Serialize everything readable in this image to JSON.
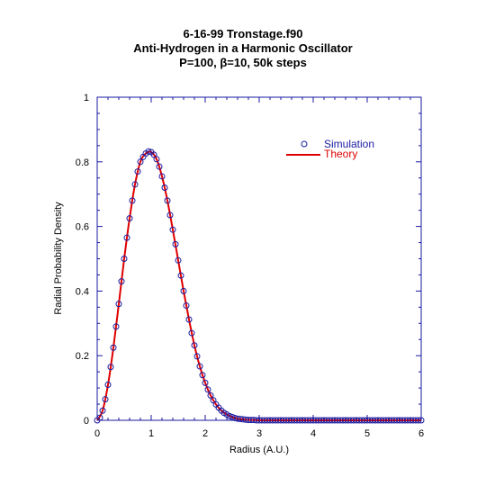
{
  "chart_data": {
    "type": "line",
    "title_lines": [
      "6-16-99 Tronstage.f90",
      "Anti-Hydrogen in a Harmonic Oscillator",
      "P=100, β=10, 50k steps"
    ],
    "xlabel": "Radius (A.U.)",
    "ylabel": "Radial Probability Density",
    "xlim": [
      0,
      6
    ],
    "ylim": [
      0,
      1
    ],
    "x_ticks": [
      0,
      1,
      2,
      3,
      4,
      5,
      6
    ],
    "y_ticks": [
      0,
      0.2,
      0.4,
      0.6,
      0.8,
      1
    ],
    "x_tick_labels": [
      "0",
      "1",
      "2",
      "3",
      "4",
      "5",
      "6"
    ],
    "y_tick_labels": [
      "0",
      "0.2",
      "0.4",
      "0.6",
      "0.8",
      "1"
    ],
    "grid": false,
    "legend_position": "top-right",
    "series": [
      {
        "name": "Simulation",
        "style": "open-circle",
        "color": "#1a1aa0",
        "x": [
          0.0,
          0.05,
          0.1,
          0.15,
          0.2,
          0.25,
          0.3,
          0.35,
          0.4,
          0.45,
          0.5,
          0.55,
          0.6,
          0.65,
          0.7,
          0.75,
          0.8,
          0.85,
          0.9,
          0.95,
          1.0,
          1.05,
          1.1,
          1.15,
          1.2,
          1.25,
          1.3,
          1.35,
          1.4,
          1.45,
          1.5,
          1.55,
          1.6,
          1.65,
          1.7,
          1.75,
          1.8,
          1.85,
          1.9,
          1.95,
          2.0,
          2.05,
          2.1,
          2.15,
          2.2,
          2.25,
          2.3,
          2.35,
          2.4,
          2.45,
          2.5,
          2.55,
          2.6,
          2.65,
          2.7,
          2.75,
          2.8,
          2.85,
          2.9,
          2.95,
          3.0,
          3.05,
          3.1,
          3.15,
          3.2,
          3.25,
          3.3,
          3.35,
          3.4,
          3.45,
          3.5,
          3.55,
          3.6,
          3.65,
          3.7,
          3.75,
          3.8,
          3.85,
          3.9,
          3.95,
          4.0,
          4.05,
          4.1,
          4.15,
          4.2,
          4.25,
          4.3,
          4.35,
          4.4,
          4.45,
          4.5,
          4.55,
          4.6,
          4.65,
          4.7,
          4.75,
          4.8,
          4.85,
          4.9,
          4.95,
          5.0,
          5.05,
          5.1,
          5.15,
          5.2,
          5.25,
          5.3,
          5.35,
          5.4,
          5.45,
          5.5,
          5.55,
          5.6,
          5.65,
          5.7,
          5.75,
          5.8,
          5.85,
          5.9,
          5.95,
          6.0
        ],
        "y": [
          0.0,
          0.008,
          0.03,
          0.065,
          0.11,
          0.165,
          0.225,
          0.29,
          0.36,
          0.43,
          0.5,
          0.565,
          0.625,
          0.68,
          0.73,
          0.77,
          0.8,
          0.815,
          0.826,
          0.832,
          0.83,
          0.822,
          0.808,
          0.785,
          0.755,
          0.72,
          0.68,
          0.635,
          0.59,
          0.545,
          0.495,
          0.448,
          0.4,
          0.355,
          0.312,
          0.27,
          0.232,
          0.198,
          0.167,
          0.14,
          0.116,
          0.095,
          0.077,
          0.062,
          0.049,
          0.039,
          0.03,
          0.023,
          0.018,
          0.013,
          0.01,
          0.007,
          0.005,
          0.004,
          0.003,
          0.002,
          0.001,
          0.001,
          0.001,
          0.0,
          0.0,
          0.0,
          0.0,
          0.0,
          0.0,
          0.0,
          0.0,
          0.0,
          0.0,
          0.0,
          0.0,
          0.0,
          0.0,
          0.0,
          0.0,
          0.0,
          0.0,
          0.0,
          0.0,
          0.0,
          0.0,
          0.0,
          0.0,
          0.0,
          0.0,
          0.0,
          0.0,
          0.0,
          0.0,
          0.0,
          0.0,
          0.0,
          0.0,
          0.0,
          0.0,
          0.0,
          0.0,
          0.0,
          0.0,
          0.0,
          0.0,
          0.0,
          0.0,
          0.0,
          0.0,
          0.0,
          0.0,
          0.0,
          0.0,
          0.0,
          0.0,
          0.0,
          0.0,
          0.0,
          0.0,
          0.0,
          0.0,
          0.0,
          0.0,
          0.0,
          0.0
        ]
      },
      {
        "name": "Theory",
        "style": "line",
        "color": "#e00000",
        "x": [
          0.0,
          0.1,
          0.2,
          0.3,
          0.4,
          0.5,
          0.6,
          0.7,
          0.8,
          0.9,
          1.0,
          1.1,
          1.2,
          1.3,
          1.4,
          1.5,
          1.6,
          1.7,
          1.8,
          1.9,
          2.0,
          2.1,
          2.2,
          2.3,
          2.4,
          2.5,
          2.6,
          2.7,
          2.8,
          2.9,
          3.0,
          3.2,
          3.4,
          3.6,
          4.0,
          5.0,
          6.0
        ],
        "y": [
          0.0,
          0.03,
          0.11,
          0.225,
          0.36,
          0.5,
          0.625,
          0.73,
          0.8,
          0.826,
          0.83,
          0.808,
          0.755,
          0.68,
          0.59,
          0.495,
          0.4,
          0.312,
          0.232,
          0.167,
          0.116,
          0.077,
          0.049,
          0.03,
          0.018,
          0.01,
          0.005,
          0.003,
          0.001,
          0.001,
          0.0,
          0.0,
          0.0,
          0.0,
          0.0,
          0.0,
          0.0
        ]
      }
    ]
  }
}
